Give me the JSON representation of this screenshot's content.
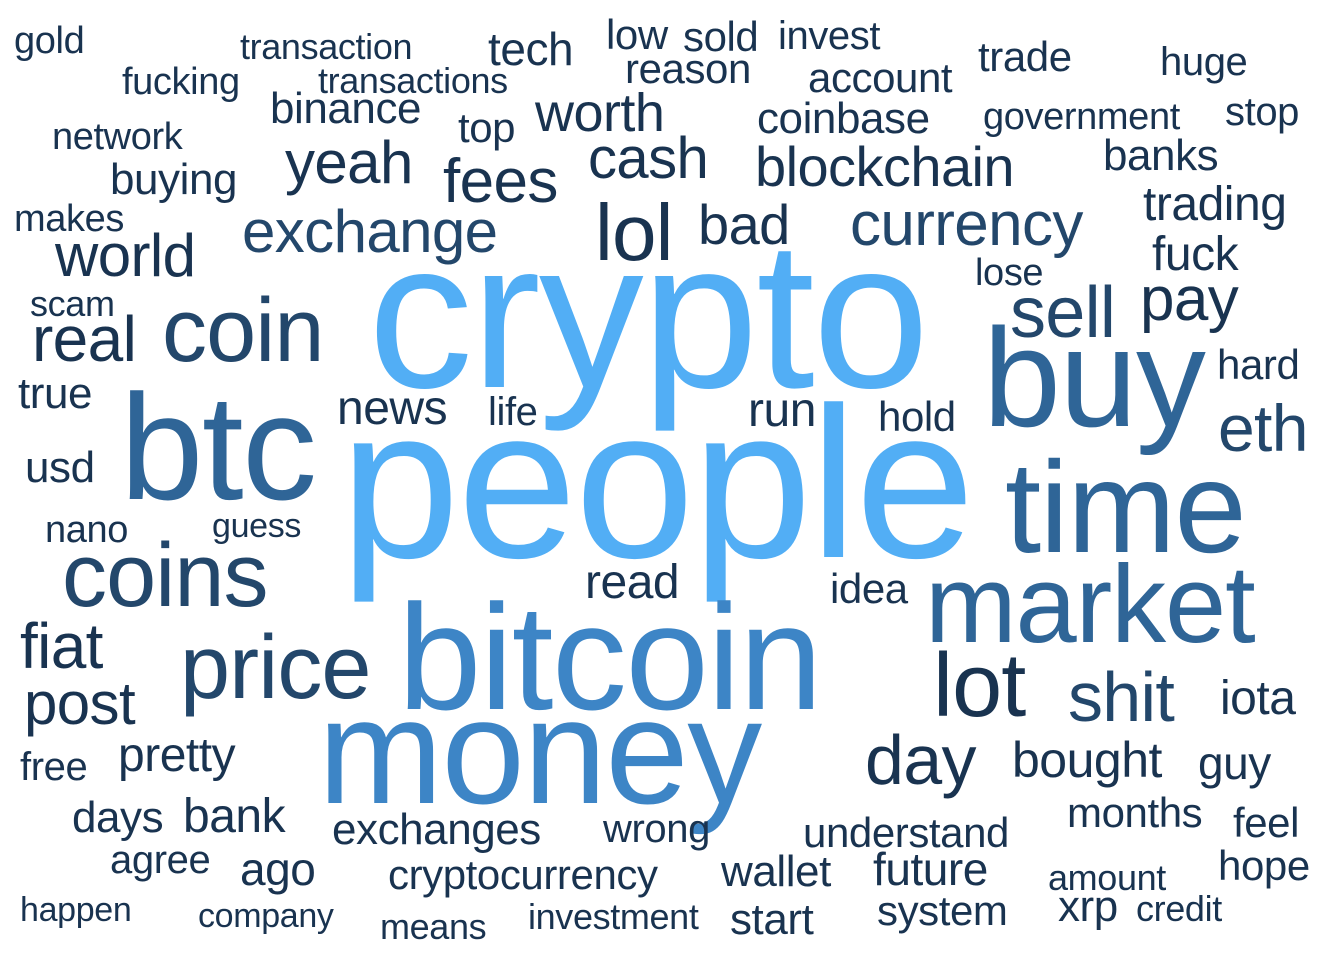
{
  "colors": {
    "background": "#ffffff",
    "c1": "#52aef5",
    "c2": "#3d85c6",
    "c3": "#2f6597",
    "c4": "#23476b",
    "c5": "#193350"
  },
  "words": [
    {
      "text": "crypto",
      "color": "c1"
    },
    {
      "text": "people",
      "color": "c1"
    },
    {
      "text": "bitcoin",
      "color": "c2"
    },
    {
      "text": "money",
      "color": "c2"
    },
    {
      "text": "btc",
      "color": "c3"
    },
    {
      "text": "buy",
      "color": "c3"
    },
    {
      "text": "time",
      "color": "c3"
    },
    {
      "text": "market",
      "color": "c3"
    },
    {
      "text": "coin",
      "color": "c4"
    },
    {
      "text": "coins",
      "color": "c4"
    },
    {
      "text": "price",
      "color": "c4"
    },
    {
      "text": "lot",
      "color": "c5"
    },
    {
      "text": "shit",
      "color": "c4"
    },
    {
      "text": "day",
      "color": "c5"
    },
    {
      "text": "lol",
      "color": "c5"
    },
    {
      "text": "sell",
      "color": "c4"
    },
    {
      "text": "eth",
      "color": "c4"
    },
    {
      "text": "currency",
      "color": "c4"
    },
    {
      "text": "exchange",
      "color": "c4"
    },
    {
      "text": "yeah",
      "color": "c5"
    },
    {
      "text": "blockchain",
      "color": "c5"
    },
    {
      "text": "cash",
      "color": "c5"
    },
    {
      "text": "fees",
      "color": "c5"
    },
    {
      "text": "real",
      "color": "c5"
    },
    {
      "text": "world",
      "color": "c5"
    },
    {
      "text": "fiat",
      "color": "c5"
    },
    {
      "text": "post",
      "color": "c5"
    },
    {
      "text": "pay",
      "color": "c5"
    },
    {
      "text": "bad",
      "color": "c5"
    },
    {
      "text": "worth",
      "color": "c5"
    },
    {
      "text": "bought",
      "color": "c5"
    },
    {
      "text": "news",
      "color": "c5"
    },
    {
      "text": "pretty",
      "color": "c5"
    },
    {
      "text": "bank",
      "color": "c5"
    },
    {
      "text": "run",
      "color": "c5"
    },
    {
      "text": "read",
      "color": "c5"
    },
    {
      "text": "fuck",
      "color": "c5"
    },
    {
      "text": "trading",
      "color": "c5"
    },
    {
      "text": "banks",
      "color": "c5"
    },
    {
      "text": "true",
      "color": "c5"
    },
    {
      "text": "usd",
      "color": "c5"
    },
    {
      "text": "iota",
      "color": "c5"
    },
    {
      "text": "guy",
      "color": "c5"
    },
    {
      "text": "exchanges",
      "color": "c5"
    },
    {
      "text": "tech",
      "color": "c5"
    },
    {
      "text": "account",
      "color": "c5"
    },
    {
      "text": "coinbase",
      "color": "c5"
    },
    {
      "text": "reason",
      "color": "c5"
    },
    {
      "text": "buying",
      "color": "c5"
    },
    {
      "text": "binance",
      "color": "c5"
    },
    {
      "text": "top",
      "color": "c5"
    },
    {
      "text": "hold",
      "color": "c5"
    },
    {
      "text": "life",
      "color": "c5"
    },
    {
      "text": "hard",
      "color": "c5"
    },
    {
      "text": "idea",
      "color": "c5"
    },
    {
      "text": "understand",
      "color": "c5"
    },
    {
      "text": "months",
      "color": "c5"
    },
    {
      "text": "feel",
      "color": "c5"
    },
    {
      "text": "hope",
      "color": "c5"
    },
    {
      "text": "future",
      "color": "c5"
    },
    {
      "text": "wallet",
      "color": "c5"
    },
    {
      "text": "cryptocurrency",
      "color": "c5"
    },
    {
      "text": "ago",
      "color": "c5"
    },
    {
      "text": "days",
      "color": "c5"
    },
    {
      "text": "free",
      "color": "c5"
    },
    {
      "text": "agree",
      "color": "c5"
    },
    {
      "text": "wrong",
      "color": "c5"
    },
    {
      "text": "system",
      "color": "c5"
    },
    {
      "text": "xrp",
      "color": "c5"
    },
    {
      "text": "start",
      "color": "c5"
    },
    {
      "text": "invest",
      "color": "c5"
    },
    {
      "text": "sold",
      "color": "c5"
    },
    {
      "text": "low",
      "color": "c5"
    },
    {
      "text": "trade",
      "color": "c5"
    },
    {
      "text": "huge",
      "color": "c5"
    },
    {
      "text": "stop",
      "color": "c5"
    },
    {
      "text": "government",
      "color": "c5"
    },
    {
      "text": "fucking",
      "color": "c5"
    },
    {
      "text": "transaction",
      "color": "c5"
    },
    {
      "text": "transactions",
      "color": "c5"
    },
    {
      "text": "gold",
      "color": "c5"
    },
    {
      "text": "network",
      "color": "c5"
    },
    {
      "text": "makes",
      "color": "c5"
    },
    {
      "text": "scam",
      "color": "c5"
    },
    {
      "text": "nano",
      "color": "c5"
    },
    {
      "text": "guess",
      "color": "c5"
    },
    {
      "text": "lose",
      "color": "c5"
    },
    {
      "text": "amount",
      "color": "c5"
    },
    {
      "text": "credit",
      "color": "c5"
    },
    {
      "text": "investment",
      "color": "c5"
    },
    {
      "text": "means",
      "color": "c5"
    },
    {
      "text": "company",
      "color": "c5"
    },
    {
      "text": "happen",
      "color": "c5"
    }
  ]
}
